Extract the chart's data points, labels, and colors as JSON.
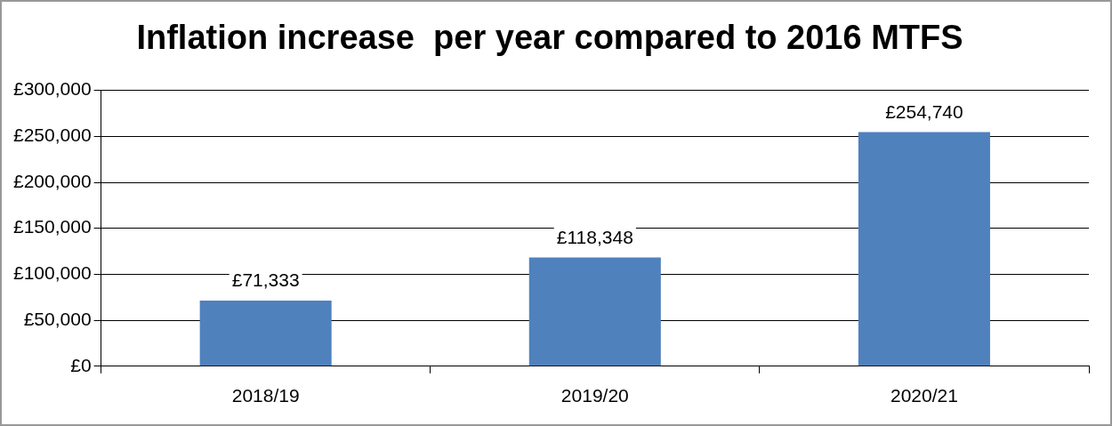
{
  "chart_data": {
    "type": "bar",
    "title": "Inflation increase  per year compared to 2016 MTFS",
    "categories": [
      "2018/19",
      "2019/20",
      "2020/21"
    ],
    "values": [
      71333,
      118348,
      254740
    ],
    "color": "#4f81bd",
    "value_labels": [
      "£71,333",
      "£118,348",
      "£254,740"
    ],
    "ylim": [
      0,
      300000
    ],
    "yticks": [
      {
        "value": 0,
        "label": "£0"
      },
      {
        "value": 50000,
        "label": "£50,000"
      },
      {
        "value": 100000,
        "label": "£100,000"
      },
      {
        "value": 150000,
        "label": "£150,000"
      },
      {
        "value": 200000,
        "label": "£200,000"
      },
      {
        "value": 250000,
        "label": "£250,000"
      },
      {
        "value": 300000,
        "label": "£300,000"
      }
    ],
    "grid": "y",
    "legend": false
  }
}
